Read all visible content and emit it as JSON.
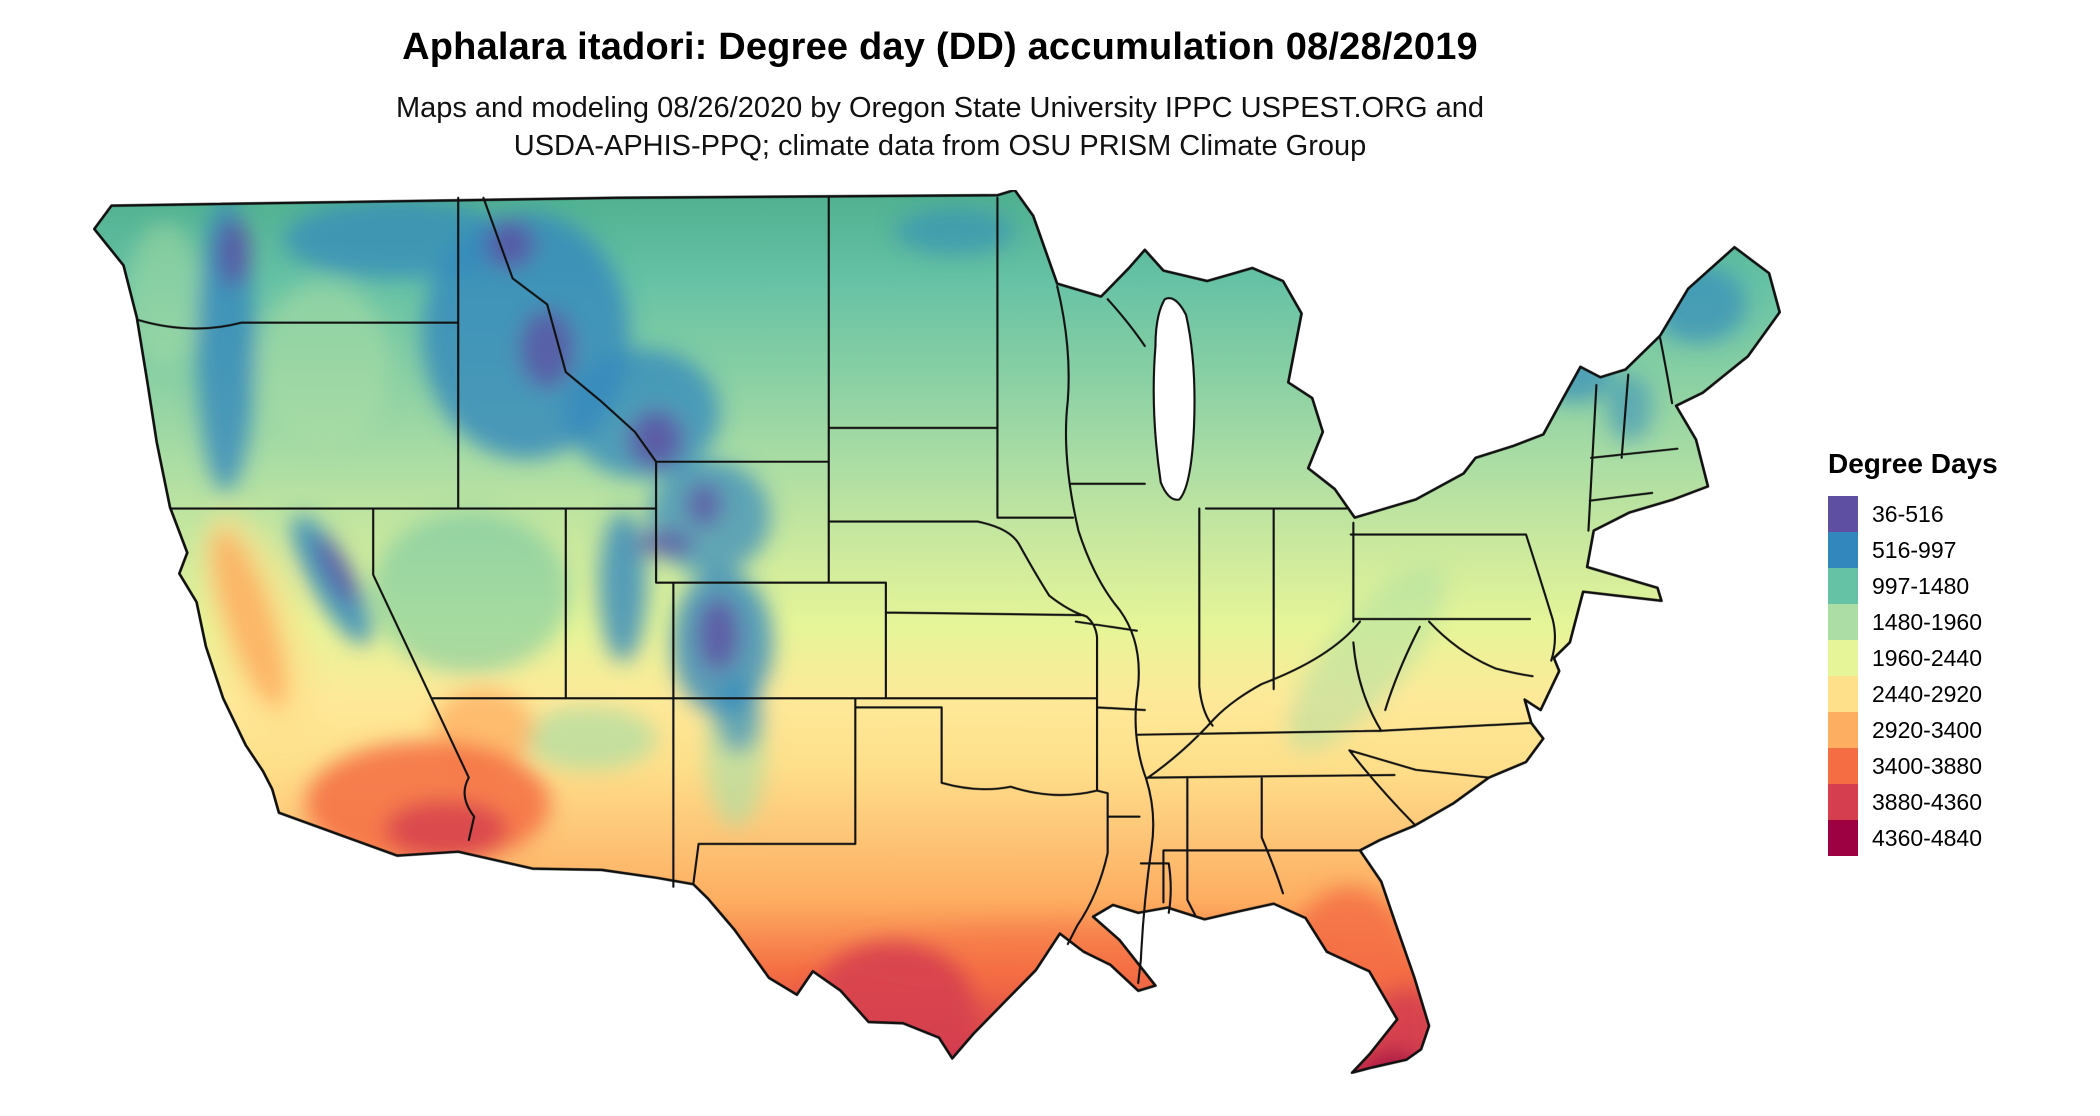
{
  "header": {
    "title": "Aphalara itadori: Degree day (DD) accumulation 08/28/2019",
    "subtitle_line1": "Maps and modeling 08/26/2020 by Oregon State University IPPC USPEST.ORG and",
    "subtitle_line2": "USDA-APHIS-PPQ; climate data from OSU PRISM Climate Group"
  },
  "legend": {
    "title": "Degree Days",
    "items": [
      {
        "range": "36-516",
        "color": "#5e4fa2"
      },
      {
        "range": "516-997",
        "color": "#3288bd"
      },
      {
        "range": "997-1480",
        "color": "#66c2a5"
      },
      {
        "range": "1480-1960",
        "color": "#abdda4"
      },
      {
        "range": "1960-2440",
        "color": "#e6f598"
      },
      {
        "range": "2440-2920",
        "color": "#fee08b"
      },
      {
        "range": "2920-3400",
        "color": "#fdae61"
      },
      {
        "range": "3400-3880",
        "color": "#f46d43"
      },
      {
        "range": "3880-4360",
        "color": "#d53e4f"
      },
      {
        "range": "4360-4840",
        "color": "#9e0142"
      }
    ]
  },
  "map": {
    "type": "choropleth-raster",
    "region": "contiguous-united-states",
    "variable": "Degree Days",
    "border_color": "#111111",
    "water_color": "#ffffff"
  }
}
